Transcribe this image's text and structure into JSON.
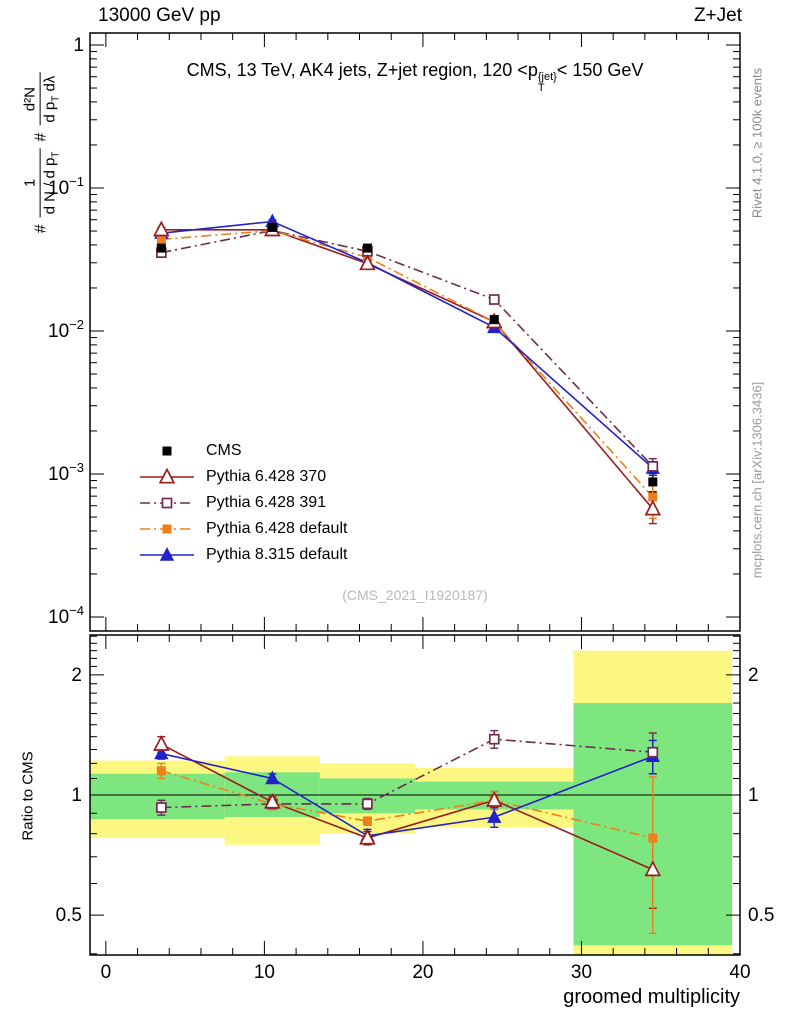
{
  "header": {
    "left": "13000 GeV pp",
    "right": "Z+Jet"
  },
  "title": {
    "pre": "CMS, 13 TeV, AK4 jets, Z+jet region, 120 <p",
    "sup": "{jet}",
    "sub": "T",
    "post": "< 150 GeV"
  },
  "ylabel": {
    "hash1": "#",
    "frac1": {
      "num": "1",
      "den_pre": "d N / d p",
      "den_sub": "T"
    },
    "hash2": "#",
    "frac2": {
      "num": "d²N",
      "den_pre": "d p",
      "den_sub": "T",
      "den_post": " dλ"
    }
  },
  "watermark": "(CMS_2021_I1920187)",
  "side_labels": {
    "rivet": "Rivet 4.1.0, ≥ 100k events",
    "mcplots": "mcplots.cern.ch [arXiv:1306.3436]"
  },
  "chart_data": {
    "type": "line",
    "title": "CMS, 13 TeV, AK4 jets, Z+jet region, 120 < pT{jet} < 150 GeV",
    "x_label": "groomed multiplicity",
    "x_range": [
      -1,
      40
    ],
    "x_ticks": [
      0,
      10,
      20,
      30,
      40
    ],
    "x": [
      3.5,
      10.5,
      16.5,
      24.5,
      34.5
    ],
    "main_panel": {
      "y_scale": "log",
      "y_range": [
        8e-05,
        1.2
      ],
      "y_ticks": [
        1,
        0.1,
        0.01,
        0.001,
        0.0001
      ]
    },
    "ratio_panel": {
      "label": "Ratio to CMS",
      "y_scale": "log",
      "y_range": [
        0.4,
        2.5
      ],
      "y_ticks": [
        0.5,
        1,
        2
      ],
      "reference_line": 1
    },
    "series": [
      {
        "name": "CMS",
        "color": "#000000",
        "marker": "square-filled",
        "marker_size": 9,
        "line": "none",
        "is_reference": true,
        "y": [
          0.038,
          0.053,
          0.038,
          0.012,
          0.00088
        ],
        "yerr": [
          0.002,
          0.002,
          0.002,
          0.0008,
          0.00013
        ]
      },
      {
        "name": "Pythia 6.428 370",
        "color": "#9b1c1c",
        "marker": "triangle-open",
        "marker_size": 12,
        "line": "solid",
        "y": [
          0.051,
          0.051,
          0.0296,
          0.0116,
          0.00057
        ],
        "yerr": [
          0.002,
          0.002,
          0.0015,
          0.0008,
          0.00012
        ],
        "ratio": [
          1.34,
          0.96,
          0.78,
          0.97,
          0.65
        ],
        "ratio_err": [
          0.06,
          0.03,
          0.03,
          0.05,
          0.13
        ]
      },
      {
        "name": "Pythia 6.428 391",
        "color": "#6f2c4f",
        "marker": "square-open",
        "marker_size": 9,
        "line": "dashdot",
        "y": [
          0.0353,
          0.0504,
          0.0361,
          0.0166,
          0.00113
        ],
        "yerr": [
          0.0015,
          0.0015,
          0.0015,
          0.0009,
          0.00015
        ],
        "ratio": [
          0.93,
          0.95,
          0.95,
          1.38,
          1.28
        ],
        "ratio_err": [
          0.04,
          0.03,
          0.03,
          0.07,
          0.15
        ]
      },
      {
        "name": "Pythia 6.428 default",
        "color": "#ef7f1a",
        "marker": "square-filled",
        "marker_size": 9,
        "line": "dashdot",
        "y": [
          0.0437,
          0.0504,
          0.0327,
          0.0116,
          0.00069
        ],
        "yerr": [
          0.002,
          0.002,
          0.0015,
          0.0008,
          0.0002
        ],
        "ratio": [
          1.15,
          0.95,
          0.86,
          0.97,
          0.78
        ],
        "ratio_err": [
          0.05,
          0.03,
          0.02,
          0.05,
          0.33
        ]
      },
      {
        "name": "Pythia 8.315 default",
        "color": "#2222cc",
        "marker": "triangle-filled",
        "marker_size": 11,
        "line": "solid",
        "y": [
          0.0483,
          0.0583,
          0.03,
          0.0106,
          0.0011
        ],
        "yerr": [
          0.0015,
          0.0015,
          0.001,
          0.0005,
          0.00012
        ],
        "ratio": [
          1.27,
          1.1,
          0.79,
          0.88,
          1.25
        ],
        "ratio_err": [
          0.04,
          0.03,
          0.03,
          0.05,
          0.12
        ]
      }
    ],
    "bands": {
      "edges": [
        -1,
        7.5,
        13.5,
        19.5,
        29.5,
        39.5
      ],
      "yellow_color": "#fbf781",
      "green_color": "#7ee67e",
      "yellow": [
        [
          0.78,
          1.22
        ],
        [
          0.75,
          1.25
        ],
        [
          0.8,
          1.2
        ],
        [
          0.83,
          1.17
        ],
        [
          0.3,
          2.3
        ]
      ],
      "green": [
        [
          0.87,
          1.13
        ],
        [
          0.88,
          1.14
        ],
        [
          0.9,
          1.1
        ],
        [
          0.92,
          1.08
        ],
        [
          0.42,
          1.7
        ]
      ]
    }
  }
}
